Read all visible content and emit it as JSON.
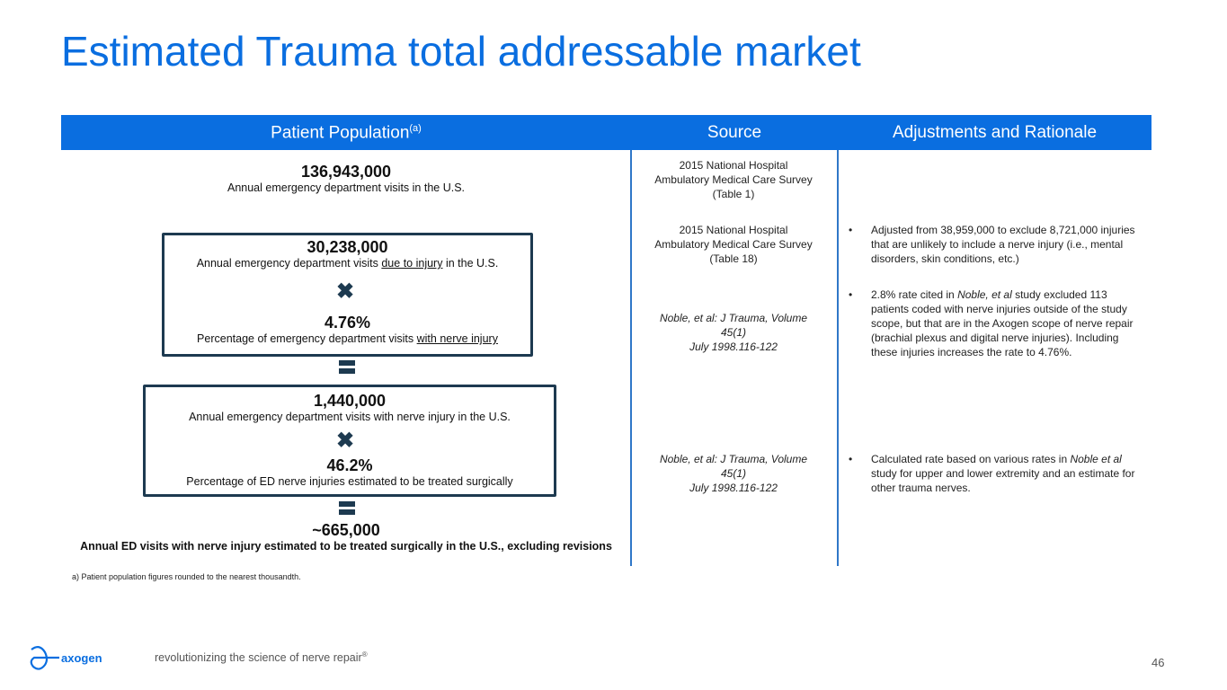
{
  "title": "Estimated Trauma total addressable market",
  "header": {
    "col1": "Patient Population",
    "col1_sup": "(a)",
    "col2": "Source",
    "col3": "Adjustments and Rationale"
  },
  "population": [
    {
      "value": "136,943,000",
      "label": "Annual emergency department visits in the U.S."
    },
    {
      "value": "30,238,000",
      "label_pre": "Annual emergency department visits ",
      "label_u": "due to injury",
      "label_post": " in the U.S."
    },
    {
      "value": "4.76%",
      "label_pre": "Percentage of emergency department visits ",
      "label_u": "with nerve injury"
    },
    {
      "value": "1,440,000",
      "label": "Annual emergency department visits with nerve injury in the U.S."
    },
    {
      "value": "46.2%",
      "label": "Percentage of ED nerve injuries estimated to be treated surgically"
    },
    {
      "value": "~665,000",
      "label": "Annual ED visits with nerve injury estimated to be treated surgically in the U.S., excluding revisions"
    }
  ],
  "operators": {
    "multiply": "multiply-icon",
    "equals": "equals-icon"
  },
  "footnote": "a) Patient population figures rounded to the nearest thousandth.",
  "sources": [
    {
      "l1": "2015 National Hospital",
      "l2": "Ambulatory Medical Care Survey",
      "l3": "(Table 1)"
    },
    {
      "l1": "2015 National Hospital",
      "l2": "Ambulatory Medical Care Survey",
      "l3": "(Table 18)"
    },
    {
      "l1": "Noble, et al: J Trauma, Volume",
      "l2": "45(1)",
      "l3": "July 1998.116-122"
    },
    {
      "l1": "Noble, et al: J Trauma, Volume",
      "l2": "45(1)",
      "l3": "July 1998.116-122"
    }
  ],
  "adjustments": [
    {
      "bullet": "•",
      "text": "Adjusted from 38,959,000 to exclude 8,721,000 injuries that are unlikely to include a nerve injury (i.e., mental disorders, skin conditions, etc.)"
    },
    {
      "bullet": "•",
      "pre": "2.8% rate cited in ",
      "em": "Noble, et al",
      "post": " study excluded 113 patients coded with nerve injuries outside of the study scope, but that are in the Axogen scope of nerve repair (brachial plexus and digital nerve injuries). Including these injuries increases the rate to 4.76%."
    },
    {
      "bullet": "•",
      "pre": "Calculated rate based on various rates in ",
      "em": "Noble et al",
      "post": " study for upper and lower extremity and an estimate for other trauma nerves."
    }
  ],
  "footer": {
    "logo_text": "axogen",
    "tagline": "revolutionizing the science of nerve repair",
    "reg": "®",
    "page": "46"
  },
  "colors": {
    "brand": "#0a6ee0",
    "box": "#1d3a50"
  }
}
